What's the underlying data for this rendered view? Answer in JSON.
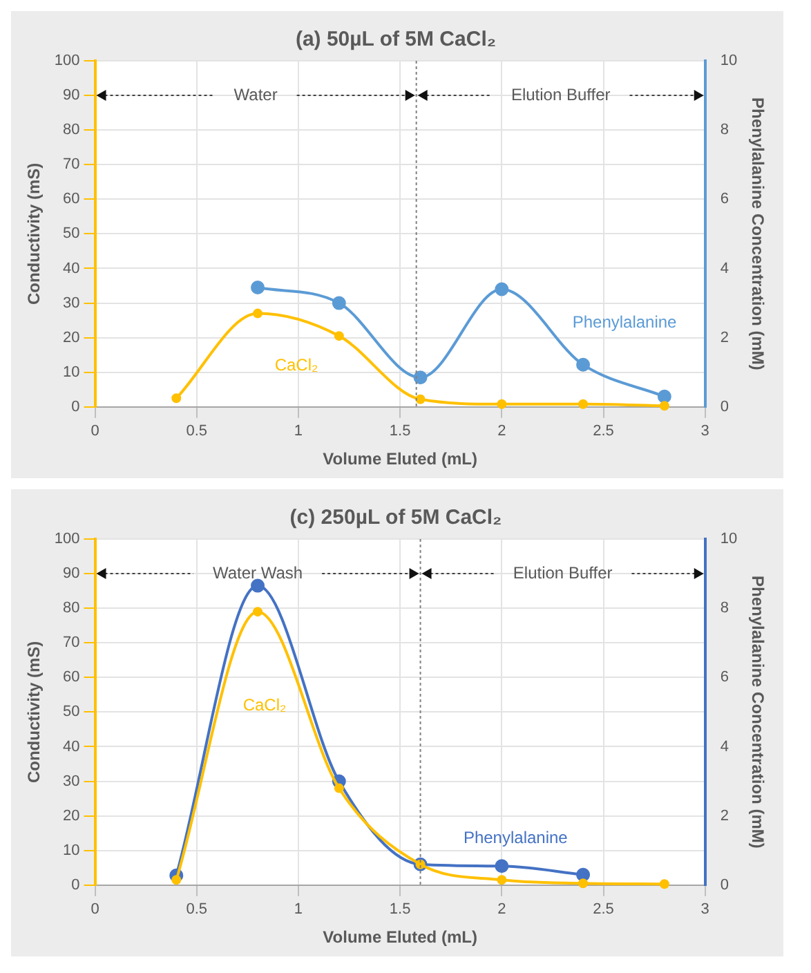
{
  "chart_data": [
    {
      "type": "line",
      "title": "(a) 50µL of 5M CaCl₂",
      "xlabel": "Volume Eluted (mL)",
      "ylabel": "Conductivity (mS)",
      "y2label": "Phenylalanine Concentration (mM)",
      "xlim": [
        0,
        3
      ],
      "xticks": [
        0,
        0.5,
        1,
        1.5,
        2,
        2.5,
        3
      ],
      "ylim": [
        0,
        100
      ],
      "yticks": [
        0,
        10,
        20,
        30,
        40,
        50,
        60,
        70,
        80,
        90,
        100
      ],
      "y2lim": [
        0,
        10
      ],
      "y2ticks": [
        0,
        2,
        4,
        6,
        8,
        10
      ],
      "grid": true,
      "marker": "circle",
      "line_style": "solid",
      "series": [
        {
          "name": "CaCl₂",
          "color": "#ffc000",
          "x": [
            0.4,
            0.8,
            1.2,
            1.6,
            2.0,
            2.4,
            2.8
          ],
          "values": [
            2.5,
            27,
            20.5,
            2.2,
            0.8,
            0.8,
            0.3
          ]
        },
        {
          "name": "Phenylalanine",
          "color": "#5b9bd5",
          "axis": "y2",
          "x": [
            0.8,
            1.2,
            1.6,
            2.0,
            2.4,
            2.8
          ],
          "values": [
            3.45,
            3.0,
            0.85,
            3.4,
            1.22,
            0.3
          ]
        }
      ],
      "ref_lines": [
        {
          "axis": "x",
          "value": 1.58,
          "color": "#808080",
          "line_style": "dotted"
        }
      ],
      "annotations": [
        "Water",
        "Elution Buffer"
      ]
    },
    {
      "type": "line",
      "title": "(c) 250µL of 5M CaCl₂",
      "xlabel": "Volume Eluted (mL)",
      "ylabel": "Conductivity (mS)",
      "y2label": "Phenylalanine Concentration (mM)",
      "xlim": [
        0,
        3
      ],
      "xticks": [
        0,
        0.5,
        1,
        1.5,
        2,
        2.5,
        3
      ],
      "ylim": [
        0,
        100
      ],
      "yticks": [
        0,
        10,
        20,
        30,
        40,
        50,
        60,
        70,
        80,
        90,
        100
      ],
      "y2lim": [
        0,
        10
      ],
      "y2ticks": [
        0,
        2,
        4,
        6,
        8,
        10
      ],
      "grid": true,
      "marker": "circle",
      "line_style": "solid",
      "series": [
        {
          "name": "CaCl₂",
          "color": "#ffc000",
          "x": [
            0.4,
            0.8,
            1.2,
            1.6,
            2.0,
            2.4,
            2.8
          ],
          "values": [
            1.5,
            79,
            28,
            6,
            1.5,
            0.5,
            0.3
          ]
        },
        {
          "name": "Phenylalanine",
          "color": "#4472c4",
          "axis": "y2",
          "x": [
            0.4,
            0.8,
            1.2,
            1.6,
            2.0,
            2.4
          ],
          "values": [
            0.28,
            8.65,
            3.0,
            0.6,
            0.55,
            0.3
          ]
        }
      ],
      "ref_lines": [
        {
          "axis": "x",
          "value": 1.6,
          "color": "#808080",
          "line_style": "dotted"
        }
      ],
      "annotations": [
        "Water Wash",
        "Elution Buffer"
      ]
    }
  ]
}
